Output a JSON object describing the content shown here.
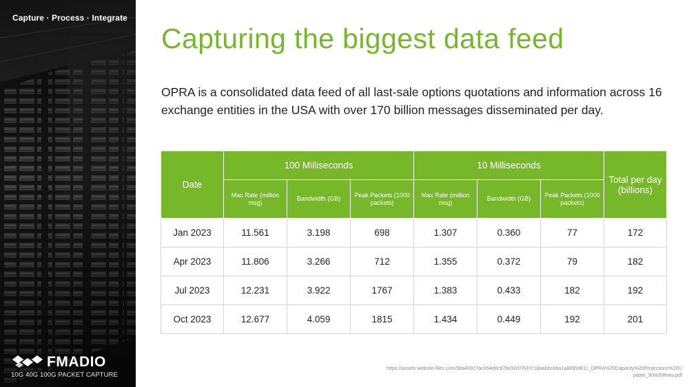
{
  "sidebar": {
    "tagline": "Capture · Process · Integrate",
    "logo_name": "FMADIO",
    "logo_sub": "10G 40G 100G  PACKET CAPTURE"
  },
  "title": "Capturing the biggest data feed",
  "description": "OPRA is a consolidated data feed of all last-sale options quotations and information across 16 exchange entities in the USA with over 170 billion messages disseminated per day.",
  "table": {
    "date_header": "Date",
    "group1": "100 Milliseconds",
    "group2": "10 Milliseconds",
    "total_header": "Total per day (billions)",
    "sub_headers": {
      "max_rate": "Max Rate (million msg)",
      "bandwidth": "Bandwidth (GB)",
      "peak_packets": "Peak Packets (1000 packets)"
    },
    "rows": [
      {
        "date": "Jan 2023",
        "r100": "11.561",
        "bw100": "3.198",
        "pk100": "698",
        "r10": "1.307",
        "bw10": "0.360",
        "pk10": "77",
        "total": "172"
      },
      {
        "date": "Apr 2023",
        "r100": "11.806",
        "bw100": "3.266",
        "pk100": "712",
        "r10": "1.355",
        "bw10": "0.372",
        "pk10": "79",
        "total": "182"
      },
      {
        "date": "Jul 2023",
        "r100": "12.231",
        "bw100": "3.922",
        "pk100": "1767",
        "r10": "1.383",
        "bw10": "0.433",
        "pk10": "182",
        "total": "192"
      },
      {
        "date": "Oct 2023",
        "r100": "12.677",
        "bw100": "4.059",
        "pk100": "1815",
        "r10": "1.434",
        "bw10": "0.449",
        "pk10": "192",
        "total": "201"
      }
    ]
  },
  "source_url": "https://assets.website-files.com/5ba40927ac854d8c97bc92d7/637c18aabbc6ba1a8895d811_OPRA%20Capacity%20Projections%20Update_90%20lines.pdf",
  "colors": {
    "accent": "#76b82a",
    "text": "#222222",
    "border": "#d4d4d4"
  }
}
